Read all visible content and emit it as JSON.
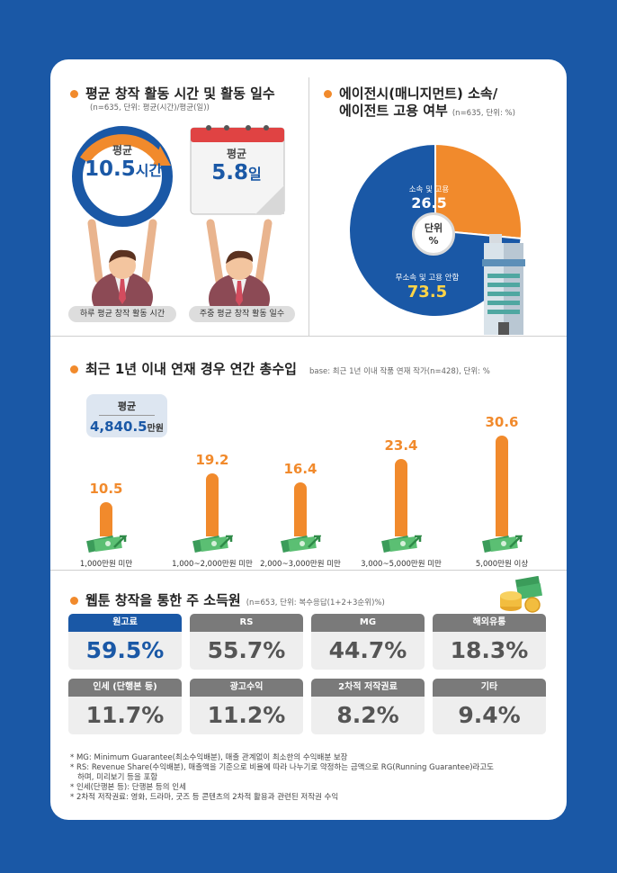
{
  "section1": {
    "title": "평균 창작 활동 시간 및 활동 일수",
    "note": "(n=635, 단위: 평균(시간)/평균(일))",
    "left": {
      "avg_label": "평균",
      "value": "10.5",
      "unit": "시간",
      "caption": "하루 평균 창작 활동 시간"
    },
    "right": {
      "avg_label": "평균",
      "value": "5.8",
      "unit": "일",
      "caption": "주중 평균 창작 활동 일수"
    }
  },
  "section2": {
    "title_line1": "에이전시(매니지먼트) 소속/",
    "title_line2": "에이전트 고용 여부",
    "note": "(n=635, 단위: %)",
    "center_label1": "단위",
    "center_label2": "%",
    "chart_data": {
      "type": "pie",
      "title": "에이전시(매니지먼트) 소속/에이전트 고용 여부",
      "slices": [
        {
          "label": "소속 및 고용",
          "value": 26.5,
          "color": "#f18a2c"
        },
        {
          "label": "무소속 및 고용 안함",
          "value": 73.5,
          "color": "#1a58a6"
        }
      ]
    },
    "value_labels": [
      "26.5",
      "73.5"
    ]
  },
  "section3": {
    "title": "최근 1년 이내 연재 경우 연간 총수입",
    "note": "base: 최근 1년 이내 작품 연재 작가(n=428), 단위: %",
    "avg_label": "평균",
    "avg_value": "4,840.5",
    "avg_unit": "만원",
    "chart_data": {
      "type": "bar",
      "title": "최근 1년 이내 연재 경우 연간 총수입",
      "categories": [
        "1,000만원 미만",
        "1,000~2,000만원 미만",
        "2,000~3,000만원 미만",
        "3,000~5,000만원 미만",
        "5,000만원 이상"
      ],
      "values": [
        10.5,
        19.2,
        16.4,
        23.4,
        30.6
      ],
      "value_labels": [
        "10.5",
        "19.2",
        "16.4",
        "23.4",
        "30.6"
      ],
      "ylim": [
        0,
        30.6
      ],
      "color": "#f18a2c"
    }
  },
  "section4": {
    "title": "웹툰 창작을 통한 주 소득원",
    "note": "(n=653, 단위: 복수응답(1+2+3순위)%)",
    "chart_data": {
      "type": "table",
      "title": "웹툰 창작을 통한 주 소득원",
      "items": [
        {
          "label": "원고료",
          "value": "59.5%",
          "highlight": true
        },
        {
          "label": "RS",
          "value": "55.7%",
          "highlight": false
        },
        {
          "label": "MG",
          "value": "44.7%",
          "highlight": false
        },
        {
          "label": "해외유통",
          "value": "18.3%",
          "highlight": false
        },
        {
          "label": "인세 (단행본 등)",
          "value": "11.7%",
          "highlight": false
        },
        {
          "label": "광고수익",
          "value": "11.2%",
          "highlight": false
        },
        {
          "label": "2차적 저작권료",
          "value": "8.2%",
          "highlight": false
        },
        {
          "label": "기타",
          "value": "9.4%",
          "highlight": false
        }
      ]
    }
  },
  "footnotes": [
    "* MG: Minimum Guarantee(최소수익배분), 매출 관계없이 최소한의 수익배분 보장",
    "* RS: Revenue Share(수익배분), 매출액을 기준으로 비율에 따라 나누기로 약정하는 금액으로 RG(Running Guarantee)라고도",
    "   하며, 미리보기 등을 포함",
    "* 인세(단행본 등): 단행본 등의 인세",
    "* 2차적 저작권료: 영화, 드라마, 굿즈 등 콘텐츠의 2차적 활용과 관련된 저작권 수익"
  ],
  "colors": {
    "accent": "#f18a2c",
    "brand": "#1a58a6",
    "tile_dark": "#7a7a7a"
  }
}
